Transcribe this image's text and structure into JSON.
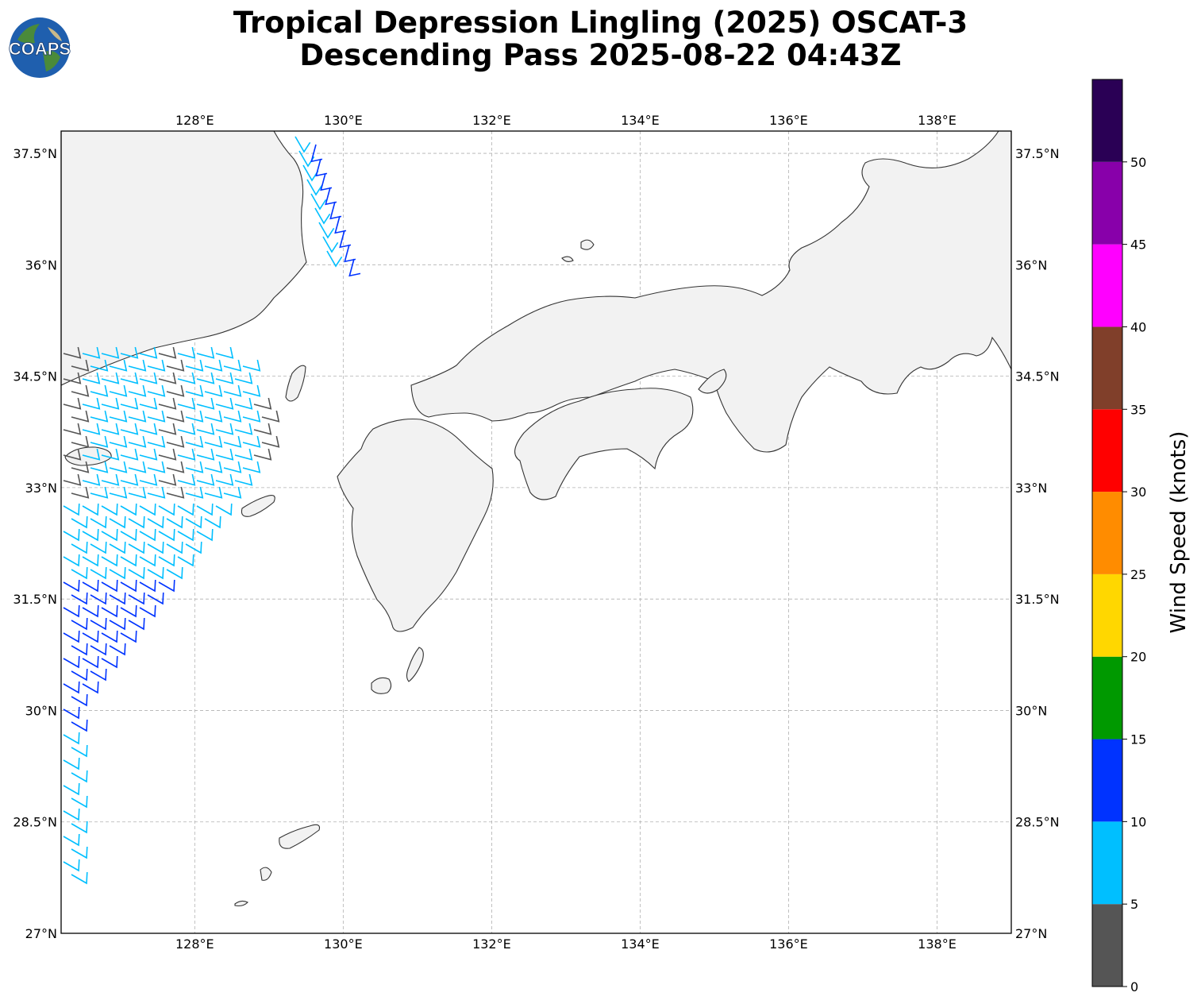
{
  "logo": {
    "text": "COAPS"
  },
  "title": {
    "line1": "Tropical Depression Lingling (2025) OSCAT-3",
    "line2": "Descending Pass 2025-08-22 04:43Z"
  },
  "map": {
    "lon_range": [
      126.2,
      139.0
    ],
    "lat_range": [
      27.0,
      37.8
    ],
    "lon_ticks": [
      {
        "value": 128,
        "label": "128°E"
      },
      {
        "value": 130,
        "label": "130°E"
      },
      {
        "value": 132,
        "label": "132°E"
      },
      {
        "value": 134,
        "label": "134°E"
      },
      {
        "value": 136,
        "label": "136°E"
      },
      {
        "value": 138,
        "label": "138°E"
      }
    ],
    "lat_ticks": [
      {
        "value": 37.5,
        "label": "37.5°N"
      },
      {
        "value": 36.0,
        "label": "36°N"
      },
      {
        "value": 34.5,
        "label": "34.5°N"
      },
      {
        "value": 33.0,
        "label": "33°N"
      },
      {
        "value": 31.5,
        "label": "31.5°N"
      },
      {
        "value": 30.0,
        "label": "30°N"
      },
      {
        "value": 28.5,
        "label": "28.5°N"
      },
      {
        "value": 27.0,
        "label": "27°N"
      }
    ],
    "land_color": "#f2f2f2",
    "coast_color": "#333333",
    "grid_color": "#b0b0b0"
  },
  "colorbar": {
    "label": "Wind Speed (knots)",
    "bins": [
      {
        "min": 0,
        "max": 5,
        "color": "#555555"
      },
      {
        "min": 5,
        "max": 10,
        "color": "#00bfff"
      },
      {
        "min": 10,
        "max": 15,
        "color": "#0033ff"
      },
      {
        "min": 15,
        "max": 20,
        "color": "#009900"
      },
      {
        "min": 20,
        "max": 25,
        "color": "#ffd700"
      },
      {
        "min": 25,
        "max": 30,
        "color": "#ff8c00"
      },
      {
        "min": 30,
        "max": 35,
        "color": "#ff0000"
      },
      {
        "min": 35,
        "max": 40,
        "color": "#803f2a"
      },
      {
        "min": 40,
        "max": 45,
        "color": "#ff00ff"
      },
      {
        "min": 45,
        "max": 50,
        "color": "#8800aa"
      },
      {
        "min": 50,
        "max": 55,
        "color": "#2a0055"
      }
    ],
    "tick_labels": [
      "0",
      "5",
      "10",
      "15",
      "20",
      "25",
      "30",
      "35",
      "40",
      "45",
      "50"
    ]
  }
}
